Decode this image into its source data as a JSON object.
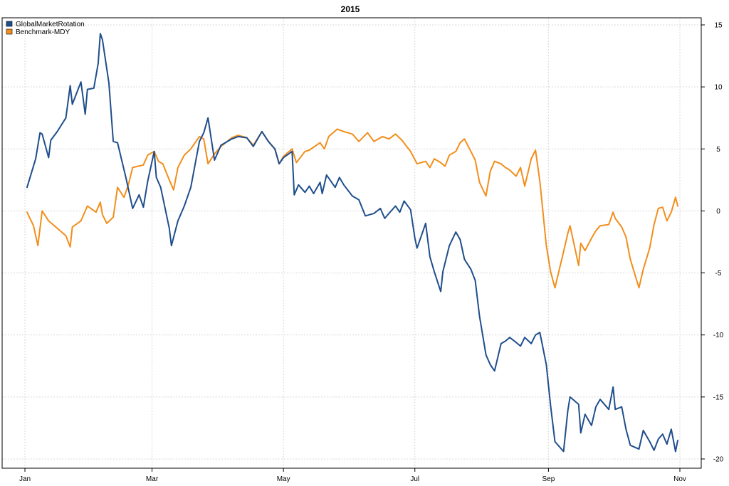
{
  "chart_data": {
    "type": "line",
    "title": "2015",
    "x_axis": {
      "type": "date",
      "range": [
        "2015-01-01",
        "2015-10-31"
      ],
      "ticks": [
        {
          "date": "2015-01-01",
          "label": "Jan"
        },
        {
          "date": "2015-03-01",
          "label": "Mar"
        },
        {
          "date": "2015-05-01",
          "label": "May"
        },
        {
          "date": "2015-07-01",
          "label": "Jul"
        },
        {
          "date": "2015-09-01",
          "label": "Sep"
        },
        {
          "date": "2015-11-01",
          "label": "Nov"
        }
      ]
    },
    "y_axis": {
      "position": "right",
      "range": [
        -20.5,
        15.5
      ],
      "ticks": [
        15,
        10,
        5,
        0,
        -5,
        -10,
        -15,
        -20
      ]
    },
    "grid": true,
    "legend": {
      "position": "top-left"
    },
    "series": [
      {
        "name": "GlobalMarketRotation",
        "color": "#1f4e8c",
        "points": [
          [
            "2015-01-02",
            1.9
          ],
          [
            "2015-01-06",
            4.2
          ],
          [
            "2015-01-08",
            6.3
          ],
          [
            "2015-01-09",
            6.2
          ],
          [
            "2015-01-12",
            4.3
          ],
          [
            "2015-01-13",
            5.7
          ],
          [
            "2015-01-16",
            6.4
          ],
          [
            "2015-01-20",
            7.5
          ],
          [
            "2015-01-22",
            10.1
          ],
          [
            "2015-01-23",
            8.6
          ],
          [
            "2015-01-27",
            10.4
          ],
          [
            "2015-01-29",
            7.8
          ],
          [
            "2015-01-30",
            9.8
          ],
          [
            "2015-02-02",
            9.9
          ],
          [
            "2015-02-04",
            11.9
          ],
          [
            "2015-02-05",
            14.3
          ],
          [
            "2015-02-06",
            13.8
          ],
          [
            "2015-02-09",
            10.3
          ],
          [
            "2015-02-11",
            5.6
          ],
          [
            "2015-02-13",
            5.5
          ],
          [
            "2015-02-17",
            2.6
          ],
          [
            "2015-02-20",
            0.2
          ],
          [
            "2015-02-23",
            1.3
          ],
          [
            "2015-02-25",
            0.3
          ],
          [
            "2015-02-27",
            2.4
          ],
          [
            "2015-03-02",
            4.8
          ],
          [
            "2015-03-03",
            2.7
          ],
          [
            "2015-03-05",
            1.9
          ],
          [
            "2015-03-09",
            -1.4
          ],
          [
            "2015-03-10",
            -2.8
          ],
          [
            "2015-03-13",
            -0.8
          ],
          [
            "2015-03-16",
            0.4
          ],
          [
            "2015-03-19",
            1.9
          ],
          [
            "2015-03-23",
            5.6
          ],
          [
            "2015-03-25",
            6.3
          ],
          [
            "2015-03-27",
            7.5
          ],
          [
            "2015-03-30",
            4.1
          ],
          [
            "2015-04-02",
            5.3
          ],
          [
            "2015-04-07",
            5.8
          ],
          [
            "2015-04-10",
            6.0
          ],
          [
            "2015-04-14",
            5.9
          ],
          [
            "2015-04-17",
            5.2
          ],
          [
            "2015-04-21",
            6.4
          ],
          [
            "2015-04-24",
            5.6
          ],
          [
            "2015-04-27",
            5.0
          ],
          [
            "2015-04-29",
            3.8
          ],
          [
            "2015-05-01",
            4.3
          ],
          [
            "2015-05-05",
            4.8
          ],
          [
            "2015-05-06",
            1.3
          ],
          [
            "2015-05-08",
            2.1
          ],
          [
            "2015-05-11",
            1.5
          ],
          [
            "2015-05-13",
            2.0
          ],
          [
            "2015-05-15",
            1.4
          ],
          [
            "2015-05-18",
            2.3
          ],
          [
            "2015-05-19",
            1.4
          ],
          [
            "2015-05-21",
            2.9
          ],
          [
            "2015-05-25",
            1.9
          ],
          [
            "2015-05-27",
            2.7
          ],
          [
            "2015-05-29",
            2.1
          ],
          [
            "2015-06-02",
            1.2
          ],
          [
            "2015-06-05",
            0.9
          ],
          [
            "2015-06-08",
            -0.4
          ],
          [
            "2015-06-12",
            -0.2
          ],
          [
            "2015-06-15",
            0.2
          ],
          [
            "2015-06-17",
            -0.6
          ],
          [
            "2015-06-19",
            -0.2
          ],
          [
            "2015-06-22",
            0.4
          ],
          [
            "2015-06-24",
            -0.1
          ],
          [
            "2015-06-26",
            0.8
          ],
          [
            "2015-06-29",
            0.1
          ],
          [
            "2015-07-01",
            -2.2
          ],
          [
            "2015-07-02",
            -3.0
          ],
          [
            "2015-07-06",
            -1.0
          ],
          [
            "2015-07-08",
            -3.7
          ],
          [
            "2015-07-10",
            -4.9
          ],
          [
            "2015-07-13",
            -6.5
          ],
          [
            "2015-07-14",
            -4.9
          ],
          [
            "2015-07-17",
            -2.8
          ],
          [
            "2015-07-20",
            -1.7
          ],
          [
            "2015-07-22",
            -2.3
          ],
          [
            "2015-07-24",
            -3.9
          ],
          [
            "2015-07-27",
            -4.7
          ],
          [
            "2015-07-29",
            -5.6
          ],
          [
            "2015-07-31",
            -8.5
          ],
          [
            "2015-08-03",
            -11.6
          ],
          [
            "2015-08-05",
            -12.4
          ],
          [
            "2015-08-07",
            -12.9
          ],
          [
            "2015-08-10",
            -10.7
          ],
          [
            "2015-08-12",
            -10.5
          ],
          [
            "2015-08-14",
            -10.2
          ],
          [
            "2015-08-17",
            -10.6
          ],
          [
            "2015-08-19",
            -10.9
          ],
          [
            "2015-08-21",
            -10.2
          ],
          [
            "2015-08-24",
            -10.7
          ],
          [
            "2015-08-26",
            -10.0
          ],
          [
            "2015-08-28",
            -9.8
          ],
          [
            "2015-08-31",
            -12.4
          ],
          [
            "2015-09-02",
            -15.7
          ],
          [
            "2015-09-04",
            -18.6
          ],
          [
            "2015-09-08",
            -19.4
          ],
          [
            "2015-09-10",
            -16.1
          ],
          [
            "2015-09-11",
            -15.0
          ],
          [
            "2015-09-15",
            -15.6
          ],
          [
            "2015-09-16",
            -17.9
          ],
          [
            "2015-09-18",
            -16.4
          ],
          [
            "2015-09-21",
            -17.3
          ],
          [
            "2015-09-23",
            -15.8
          ],
          [
            "2015-09-25",
            -15.2
          ],
          [
            "2015-09-29",
            -16.0
          ],
          [
            "2015-10-01",
            -14.2
          ],
          [
            "2015-10-02",
            -16.0
          ],
          [
            "2015-10-05",
            -15.8
          ],
          [
            "2015-10-07",
            -17.6
          ],
          [
            "2015-10-09",
            -18.9
          ],
          [
            "2015-10-13",
            -19.2
          ],
          [
            "2015-10-15",
            -17.7
          ],
          [
            "2015-10-18",
            -18.6
          ],
          [
            "2015-10-20",
            -19.3
          ],
          [
            "2015-10-22",
            -18.4
          ],
          [
            "2015-10-24",
            -18.0
          ],
          [
            "2015-10-26",
            -18.8
          ],
          [
            "2015-10-28",
            -17.6
          ],
          [
            "2015-10-30",
            -19.4
          ],
          [
            "2015-10-31",
            -18.5
          ]
        ]
      },
      {
        "name": "Benchmark-MDY",
        "color": "#f28e1c",
        "points": [
          [
            "2015-01-02",
            -0.1
          ],
          [
            "2015-01-05",
            -1.2
          ],
          [
            "2015-01-07",
            -2.8
          ],
          [
            "2015-01-09",
            0.0
          ],
          [
            "2015-01-12",
            -0.8
          ],
          [
            "2015-01-16",
            -1.4
          ],
          [
            "2015-01-20",
            -2.0
          ],
          [
            "2015-01-22",
            -2.9
          ],
          [
            "2015-01-23",
            -1.3
          ],
          [
            "2015-01-27",
            -0.8
          ],
          [
            "2015-01-30",
            0.4
          ],
          [
            "2015-02-03",
            -0.1
          ],
          [
            "2015-02-05",
            0.7
          ],
          [
            "2015-02-06",
            -0.3
          ],
          [
            "2015-02-08",
            -1.0
          ],
          [
            "2015-02-11",
            -0.5
          ],
          [
            "2015-02-13",
            1.9
          ],
          [
            "2015-02-16",
            1.1
          ],
          [
            "2015-02-18",
            2.1
          ],
          [
            "2015-02-20",
            3.5
          ],
          [
            "2015-02-25",
            3.7
          ],
          [
            "2015-02-27",
            4.5
          ],
          [
            "2015-03-02",
            4.8
          ],
          [
            "2015-03-04",
            4.0
          ],
          [
            "2015-03-06",
            3.8
          ],
          [
            "2015-03-09",
            2.5
          ],
          [
            "2015-03-11",
            1.7
          ],
          [
            "2015-03-13",
            3.5
          ],
          [
            "2015-03-16",
            4.5
          ],
          [
            "2015-03-19",
            5.0
          ],
          [
            "2015-03-23",
            6.0
          ],
          [
            "2015-03-25",
            5.8
          ],
          [
            "2015-03-27",
            3.8
          ],
          [
            "2015-03-30",
            4.6
          ],
          [
            "2015-04-02",
            5.2
          ],
          [
            "2015-04-07",
            5.9
          ],
          [
            "2015-04-10",
            6.1
          ],
          [
            "2015-04-14",
            5.9
          ],
          [
            "2015-04-17",
            5.3
          ],
          [
            "2015-04-21",
            6.4
          ],
          [
            "2015-04-24",
            5.6
          ],
          [
            "2015-04-27",
            5.0
          ],
          [
            "2015-04-29",
            3.8
          ],
          [
            "2015-05-01",
            4.4
          ],
          [
            "2015-05-05",
            5.0
          ],
          [
            "2015-05-07",
            3.9
          ],
          [
            "2015-05-11",
            4.8
          ],
          [
            "2015-05-13",
            4.9
          ],
          [
            "2015-05-18",
            5.5
          ],
          [
            "2015-05-20",
            5.0
          ],
          [
            "2015-05-22",
            6.0
          ],
          [
            "2015-05-26",
            6.6
          ],
          [
            "2015-05-29",
            6.4
          ],
          [
            "2015-06-02",
            6.2
          ],
          [
            "2015-06-05",
            5.6
          ],
          [
            "2015-06-09",
            6.3
          ],
          [
            "2015-06-12",
            5.6
          ],
          [
            "2015-06-16",
            6.0
          ],
          [
            "2015-06-19",
            5.8
          ],
          [
            "2015-06-22",
            6.2
          ],
          [
            "2015-06-25",
            5.7
          ],
          [
            "2015-06-29",
            4.8
          ],
          [
            "2015-07-02",
            3.8
          ],
          [
            "2015-07-06",
            4.0
          ],
          [
            "2015-07-08",
            3.5
          ],
          [
            "2015-07-10",
            4.2
          ],
          [
            "2015-07-13",
            3.9
          ],
          [
            "2015-07-15",
            3.6
          ],
          [
            "2015-07-17",
            4.5
          ],
          [
            "2015-07-20",
            4.8
          ],
          [
            "2015-07-22",
            5.5
          ],
          [
            "2015-07-24",
            5.8
          ],
          [
            "2015-07-27",
            4.8
          ],
          [
            "2015-07-29",
            4.1
          ],
          [
            "2015-07-31",
            2.3
          ],
          [
            "2015-08-03",
            1.2
          ],
          [
            "2015-08-05",
            3.2
          ],
          [
            "2015-08-07",
            4.0
          ],
          [
            "2015-08-10",
            3.8
          ],
          [
            "2015-08-12",
            3.5
          ],
          [
            "2015-08-14",
            3.3
          ],
          [
            "2015-08-17",
            2.8
          ],
          [
            "2015-08-19",
            3.5
          ],
          [
            "2015-08-21",
            2.0
          ],
          [
            "2015-08-24",
            4.2
          ],
          [
            "2015-08-26",
            4.9
          ],
          [
            "2015-08-28",
            2.4
          ],
          [
            "2015-08-31",
            -2.8
          ],
          [
            "2015-09-02",
            -4.9
          ],
          [
            "2015-09-04",
            -6.2
          ],
          [
            "2015-09-08",
            -3.3
          ],
          [
            "2015-09-10",
            -1.8
          ],
          [
            "2015-09-11",
            -1.2
          ],
          [
            "2015-09-15",
            -4.4
          ],
          [
            "2015-09-16",
            -2.6
          ],
          [
            "2015-09-18",
            -3.2
          ],
          [
            "2015-09-21",
            -2.2
          ],
          [
            "2015-09-23",
            -1.6
          ],
          [
            "2015-09-25",
            -1.2
          ],
          [
            "2015-09-29",
            -1.1
          ],
          [
            "2015-10-01",
            -0.1
          ],
          [
            "2015-10-02",
            -0.6
          ],
          [
            "2015-10-05",
            -1.3
          ],
          [
            "2015-10-07",
            -2.1
          ],
          [
            "2015-10-09",
            -3.9
          ],
          [
            "2015-10-13",
            -6.2
          ],
          [
            "2015-10-15",
            -4.7
          ],
          [
            "2015-10-18",
            -3.0
          ],
          [
            "2015-10-20",
            -1.1
          ],
          [
            "2015-10-22",
            0.2
          ],
          [
            "2015-10-24",
            0.3
          ],
          [
            "2015-10-26",
            -0.8
          ],
          [
            "2015-10-28",
            -0.1
          ],
          [
            "2015-10-30",
            1.1
          ],
          [
            "2015-10-31",
            0.4
          ]
        ]
      }
    ]
  }
}
